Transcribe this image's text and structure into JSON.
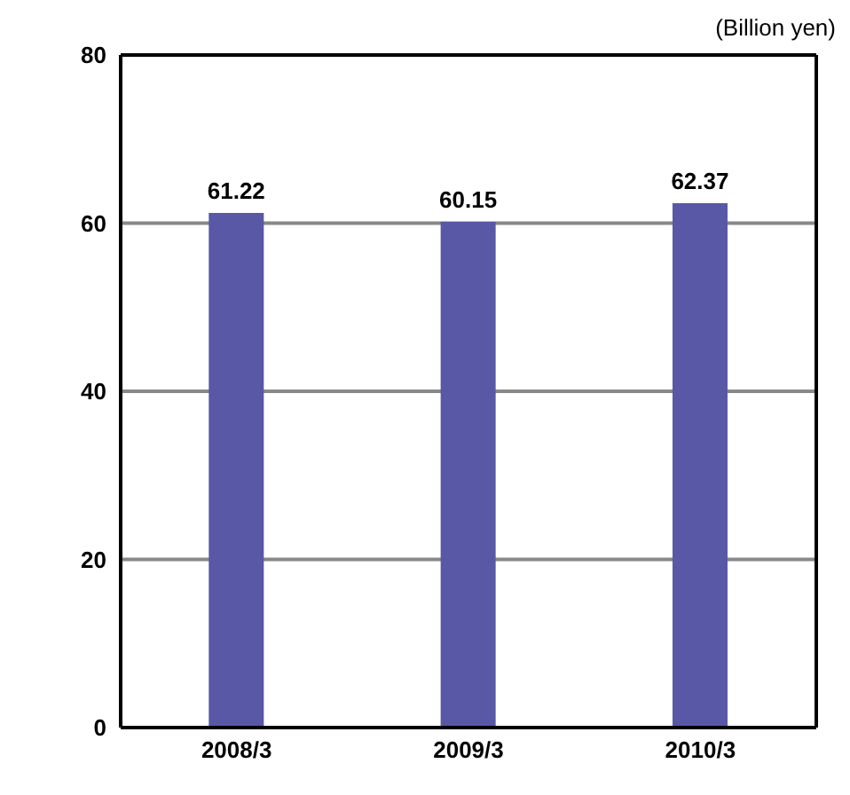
{
  "chart_data": {
    "type": "bar",
    "categories": [
      "2008/3",
      "2009/3",
      "2010/3"
    ],
    "values": [
      61.22,
      60.15,
      62.37
    ],
    "color": "#5858a6",
    "ylim": [
      0,
      80
    ],
    "yticks": [
      0,
      20,
      40,
      60,
      80
    ],
    "grid": "y",
    "data_labels": true,
    "annotations": [
      "(Billion yen)"
    ]
  }
}
